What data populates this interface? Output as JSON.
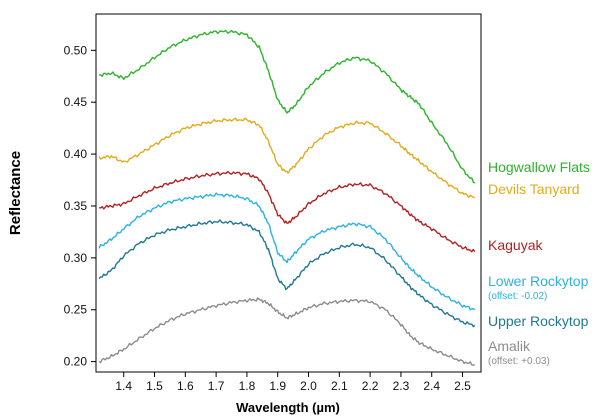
{
  "chart_data": {
    "type": "line",
    "title": "",
    "xlabel": "Wavelength (µm)",
    "ylabel": "Reflectance",
    "xlim": [
      1.31,
      2.56
    ],
    "ylim": [
      0.19,
      0.535
    ],
    "grid": false,
    "legend": "direct labels at right end of each line",
    "x_ticks": [
      1.4,
      1.5,
      1.6,
      1.7,
      1.8,
      1.9,
      2.0,
      2.1,
      2.2,
      2.3,
      2.4,
      2.5
    ],
    "x_tick_labels": [
      "1.4",
      "1.5",
      "1.6",
      "1.7",
      "1.8",
      "1.9",
      "2.0",
      "2.1",
      "2.2",
      "2.3",
      "2.4",
      "2.5"
    ],
    "y_ticks": [
      0.2,
      0.25,
      0.3,
      0.35,
      0.4,
      0.45,
      0.5
    ],
    "y_tick_labels": [
      "0.20",
      "0.25",
      "0.30",
      "0.35",
      "0.40",
      "0.45",
      "0.50"
    ],
    "x": [
      1.32,
      1.36,
      1.4,
      1.45,
      1.5,
      1.55,
      1.6,
      1.65,
      1.7,
      1.75,
      1.8,
      1.84,
      1.87,
      1.9,
      1.93,
      1.96,
      2.0,
      2.05,
      2.1,
      2.15,
      2.2,
      2.25,
      2.3,
      2.33,
      2.36,
      2.4,
      2.45,
      2.5,
      2.54
    ],
    "series": [
      {
        "name": "Hogwallow Flats",
        "color": "#2ab52a",
        "values": [
          0.476,
          0.478,
          0.473,
          0.482,
          0.493,
          0.503,
          0.51,
          0.515,
          0.518,
          0.518,
          0.515,
          0.503,
          0.48,
          0.452,
          0.44,
          0.448,
          0.465,
          0.478,
          0.488,
          0.493,
          0.49,
          0.478,
          0.462,
          0.455,
          0.448,
          0.43,
          0.41,
          0.385,
          0.372
        ]
      },
      {
        "name": "Devils Tanyard",
        "color": "#e3ab1b",
        "values": [
          0.396,
          0.398,
          0.392,
          0.4,
          0.409,
          0.418,
          0.425,
          0.429,
          0.432,
          0.433,
          0.433,
          0.428,
          0.412,
          0.39,
          0.382,
          0.39,
          0.405,
          0.418,
          0.426,
          0.43,
          0.43,
          0.42,
          0.408,
          0.4,
          0.393,
          0.383,
          0.372,
          0.362,
          0.358
        ]
      },
      {
        "name": "Kaguyak",
        "color": "#b32121",
        "values": [
          0.348,
          0.35,
          0.352,
          0.36,
          0.367,
          0.372,
          0.376,
          0.379,
          0.381,
          0.382,
          0.381,
          0.376,
          0.362,
          0.342,
          0.333,
          0.34,
          0.352,
          0.362,
          0.368,
          0.371,
          0.37,
          0.362,
          0.35,
          0.342,
          0.335,
          0.328,
          0.318,
          0.31,
          0.306
        ]
      },
      {
        "name": "Lower Rockytop",
        "note": "(offset: -0.02)",
        "color": "#2bb3e3",
        "values": [
          0.31,
          0.318,
          0.328,
          0.34,
          0.348,
          0.354,
          0.357,
          0.359,
          0.361,
          0.36,
          0.357,
          0.35,
          0.333,
          0.305,
          0.296,
          0.306,
          0.318,
          0.326,
          0.33,
          0.333,
          0.33,
          0.318,
          0.3,
          0.29,
          0.282,
          0.272,
          0.262,
          0.254,
          0.25
        ]
      },
      {
        "name": "Upper Rockytop",
        "note": "",
        "color": "#1f7893",
        "values": [
          0.28,
          0.288,
          0.302,
          0.314,
          0.322,
          0.327,
          0.33,
          0.333,
          0.335,
          0.334,
          0.332,
          0.325,
          0.308,
          0.28,
          0.27,
          0.28,
          0.294,
          0.304,
          0.31,
          0.313,
          0.31,
          0.298,
          0.282,
          0.272,
          0.264,
          0.255,
          0.246,
          0.238,
          0.235
        ]
      },
      {
        "name": "Amalik",
        "note": "(offset: +0.03)",
        "color": "#8c8c8c",
        "values": [
          0.2,
          0.205,
          0.212,
          0.222,
          0.232,
          0.24,
          0.246,
          0.25,
          0.254,
          0.257,
          0.259,
          0.26,
          0.256,
          0.248,
          0.242,
          0.246,
          0.252,
          0.256,
          0.258,
          0.259,
          0.258,
          0.25,
          0.236,
          0.225,
          0.218,
          0.212,
          0.206,
          0.2,
          0.197
        ]
      }
    ]
  }
}
